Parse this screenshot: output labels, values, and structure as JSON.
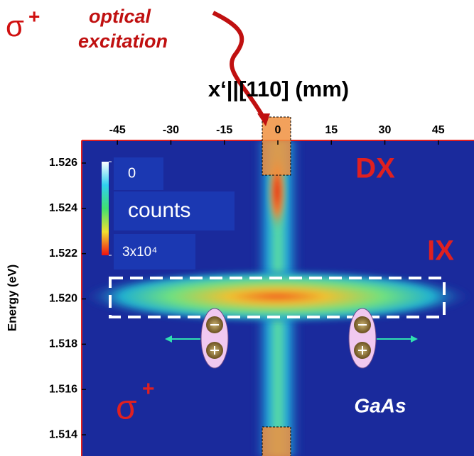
{
  "chart_data": {
    "type": "image",
    "title": "x‘||[110] (mm)",
    "y_label": "Energy (eV)",
    "xlim": [
      -55,
      55
    ],
    "xticks": [
      -45,
      -30,
      -15,
      0,
      15,
      30,
      45
    ],
    "ylim": [
      1.513,
      1.527
    ],
    "yticks": [
      1.526,
      1.524,
      1.522,
      {
        "value": 1.52,
        "label": "1.520"
      },
      1.518,
      1.516,
      1.514
    ],
    "colorbar": {
      "label": "counts",
      "ticks": [
        {
          "value": 0,
          "label": "0"
        },
        {
          "value": 30000,
          "label": "3x10⁴"
        }
      ]
    },
    "excitation": {
      "symbol": "σ",
      "sup": "+",
      "line1": "optical",
      "line2": "excitation"
    },
    "annotations": {
      "dx": "DX",
      "ix": "IX",
      "material": "GaAs",
      "detection": {
        "symbol": "σ",
        "sup": "+"
      }
    }
  }
}
